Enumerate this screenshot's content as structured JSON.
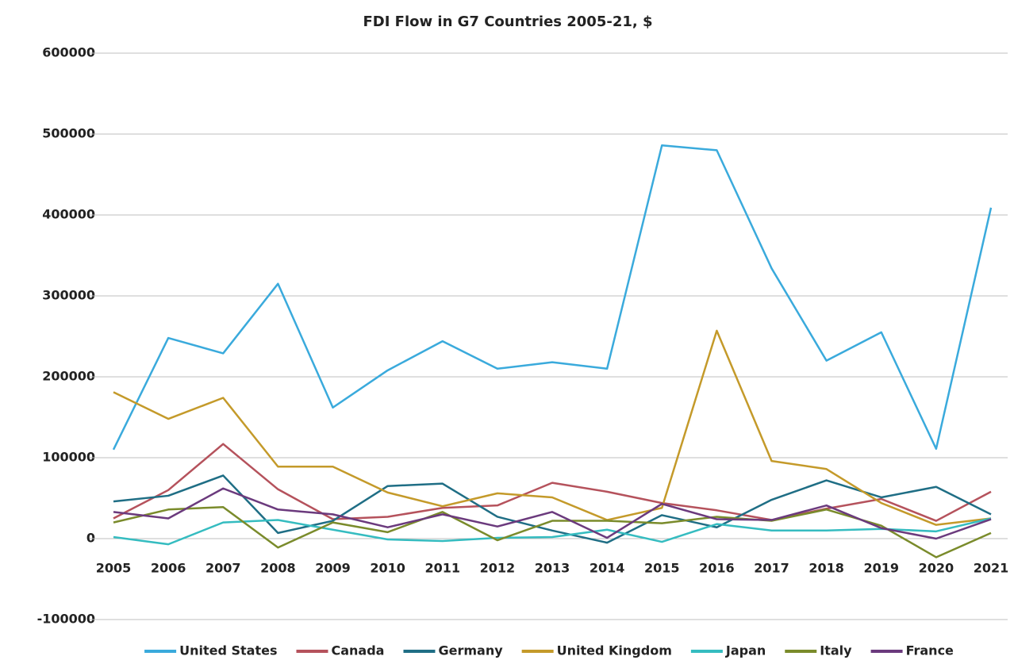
{
  "chart_data": {
    "type": "line",
    "title": "FDI Flow in G7 Countries 2005-21, $",
    "categories": [
      "2005",
      "2006",
      "2007",
      "2008",
      "2009",
      "2010",
      "2011",
      "2012",
      "2013",
      "2014",
      "2015",
      "2016",
      "2017",
      "2018",
      "2019",
      "2020",
      "2021"
    ],
    "series": [
      {
        "name": "United States",
        "color": "#3aaadc",
        "values": [
          110000,
          248000,
          229000,
          315000,
          162000,
          208000,
          244000,
          210000,
          218000,
          210000,
          486000,
          480000,
          334000,
          220000,
          255000,
          111000,
          409000
        ]
      },
      {
        "name": "Canada",
        "color": "#b5525c",
        "values": [
          25000,
          60000,
          117000,
          61000,
          24000,
          27000,
          38000,
          41000,
          69000,
          58000,
          44000,
          35000,
          23000,
          37000,
          49000,
          22000,
          58000
        ]
      },
      {
        "name": "Germany",
        "color": "#1f6e85",
        "values": [
          46000,
          53000,
          78000,
          7000,
          22000,
          65000,
          68000,
          27000,
          10000,
          -5000,
          29000,
          14000,
          48000,
          72000,
          51000,
          64000,
          30000
        ]
      },
      {
        "name": "United Kingdom",
        "color": "#c49a2a",
        "values": [
          181000,
          148000,
          174000,
          89000,
          89000,
          57000,
          40000,
          56000,
          51000,
          23000,
          38000,
          257000,
          96000,
          86000,
          44000,
          17000,
          25000
        ]
      },
      {
        "name": "Japan",
        "color": "#35bcc0",
        "values": [
          2000,
          -7000,
          20000,
          23000,
          11000,
          -1000,
          -3000,
          1000,
          2000,
          11000,
          -4000,
          18000,
          10000,
          10000,
          12000,
          9000,
          25000
        ]
      },
      {
        "name": "Italy",
        "color": "#7a8b2b",
        "values": [
          20000,
          36000,
          39000,
          -11000,
          20000,
          8000,
          33000,
          -2000,
          22000,
          22000,
          19000,
          27000,
          22000,
          36000,
          16000,
          -23000,
          7000
        ]
      },
      {
        "name": "France",
        "color": "#6b3a7d",
        "values": [
          33000,
          25000,
          62000,
          36000,
          30000,
          14000,
          30000,
          15000,
          33000,
          1000,
          43000,
          24000,
          23000,
          41000,
          13000,
          0,
          24000
        ]
      }
    ],
    "ylim": [
      -100000,
      600000
    ],
    "yticks": [
      -100000,
      0,
      100000,
      200000,
      300000,
      400000,
      500000,
      600000
    ],
    "grid": true,
    "legend": "bottom"
  }
}
